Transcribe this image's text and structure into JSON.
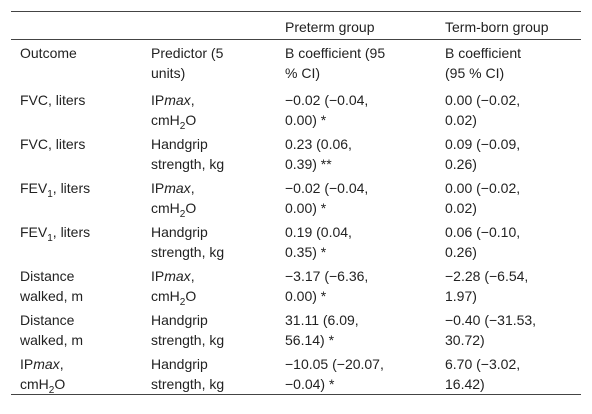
{
  "table": {
    "column_groups": [
      "Preterm group",
      "Term-born group"
    ],
    "rows": [
      [
        [
          "Outcome"
        ],
        [
          "Predictor (5",
          "units)"
        ],
        [
          "B coefficient (95",
          "% CI)"
        ],
        [
          "B coefficient",
          "(95 % CI)"
        ]
      ],
      [
        [
          "FVC, liters"
        ],
        [
          [
            {
              "text": "IP"
            },
            {
              "text": "max",
              "style": "italic"
            },
            {
              "text": ","
            }
          ],
          [
            {
              "text": "cmH"
            },
            {
              "text": "2",
              "style": "sub"
            },
            {
              "text": "O"
            }
          ]
        ],
        [
          "−0.02 (−0.04,",
          "0.00) *"
        ],
        [
          "0.00 (−0.02,",
          "0.02)"
        ]
      ],
      [
        [
          "FVC, liters"
        ],
        [
          "Handgrip",
          "strength, kg"
        ],
        [
          "0.23 (0.06,",
          "0.39) **"
        ],
        [
          "0.09 (−0.09,",
          "0.26)"
        ]
      ],
      [
        [
          [
            {
              "text": "FEV"
            },
            {
              "text": "1",
              "style": "sub"
            },
            {
              "text": ", liters"
            }
          ]
        ],
        [
          [
            {
              "text": "IP"
            },
            {
              "text": "max",
              "style": "italic"
            },
            {
              "text": ","
            }
          ],
          [
            {
              "text": "cmH"
            },
            {
              "text": "2",
              "style": "sub"
            },
            {
              "text": "O"
            }
          ]
        ],
        [
          "−0.02 (−0.04,",
          "0.00) *"
        ],
        [
          "0.00 (−0.02,",
          "0.02)"
        ]
      ],
      [
        [
          [
            {
              "text": "FEV"
            },
            {
              "text": "1",
              "style": "sub"
            },
            {
              "text": ", liters"
            }
          ]
        ],
        [
          "Handgrip",
          "strength, kg"
        ],
        [
          "0.19 (0.04,",
          "0.35) *"
        ],
        [
          "0.06 (−0.10,",
          "0.26)"
        ]
      ],
      [
        [
          "Distance",
          "walked, m"
        ],
        [
          [
            {
              "text": "IP"
            },
            {
              "text": "max",
              "style": "italic"
            },
            {
              "text": ","
            }
          ],
          [
            {
              "text": "cmH"
            },
            {
              "text": "2",
              "style": "sub"
            },
            {
              "text": "O"
            }
          ]
        ],
        [
          "−3.17 (−6.36,",
          "0.00) *"
        ],
        [
          "−2.28 (−6.54,",
          "1.97)"
        ]
      ],
      [
        [
          "Distance",
          "walked, m"
        ],
        [
          "Handgrip",
          "strength, kg"
        ],
        [
          "31.11 (6.09,",
          "56.14) *"
        ],
        [
          "−0.40 (−31.53,",
          "30.72)"
        ]
      ],
      [
        [
          [
            {
              "text": "IP"
            },
            {
              "text": "max",
              "style": "italic"
            },
            {
              "text": ","
            }
          ],
          [
            {
              "text": "cmH"
            },
            {
              "text": "2",
              "style": "sub"
            },
            {
              "text": "O"
            }
          ]
        ],
        [
          "Handgrip",
          "strength, kg"
        ],
        [
          "−10.05 (−20.07,",
          "−0.04) *"
        ],
        [
          "6.70 (−3.02,",
          "16.42)"
        ]
      ]
    ]
  }
}
